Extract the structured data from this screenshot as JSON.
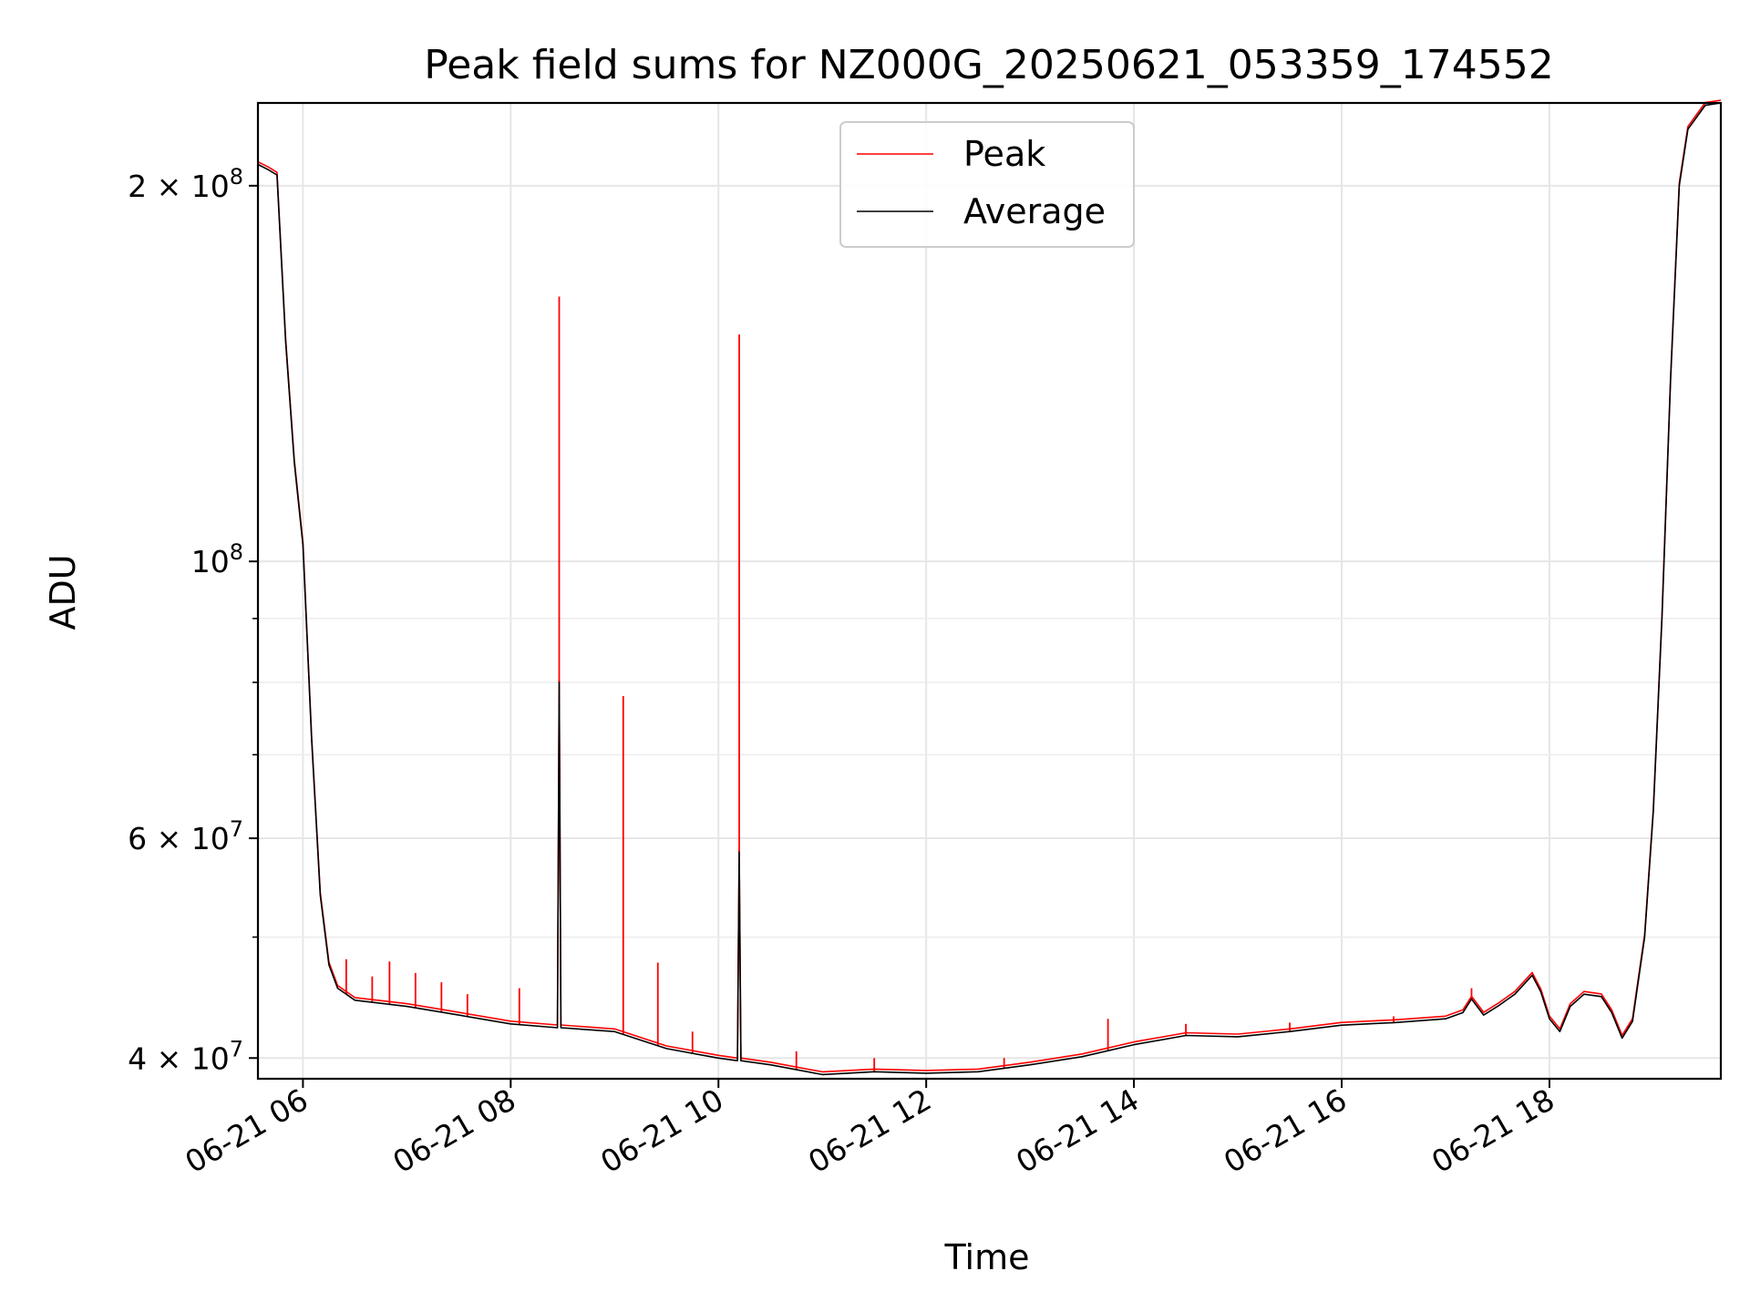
{
  "chart_data": {
    "type": "line",
    "title": "Peak field sums for NZ000G_20250621_053359_174552",
    "xlabel": "Time",
    "ylabel": "ADU",
    "y_scale": "log",
    "ylim": [
      38500000,
      233000000
    ],
    "xlim": [
      "2025-06-21 05:34",
      "2025-06-21 19:39"
    ],
    "x_ticks": [
      {
        "t": "2025-06-21 06:00",
        "label": "06-21 06"
      },
      {
        "t": "2025-06-21 08:00",
        "label": "06-21 08"
      },
      {
        "t": "2025-06-21 10:00",
        "label": "06-21 10"
      },
      {
        "t": "2025-06-21 12:00",
        "label": "06-21 12"
      },
      {
        "t": "2025-06-21 14:00",
        "label": "06-21 14"
      },
      {
        "t": "2025-06-21 16:00",
        "label": "06-21 16"
      },
      {
        "t": "2025-06-21 18:00",
        "label": "06-21 18"
      }
    ],
    "y_major_ticks": [
      {
        "v": 40000000,
        "mant": "4",
        "exp": "7"
      },
      {
        "v": 60000000,
        "mant": "6",
        "exp": "7"
      },
      {
        "v": 100000000,
        "mant": "",
        "exp": "8"
      },
      {
        "v": 200000000,
        "mant": "2",
        "exp": "8"
      }
    ],
    "y_minor_ticks": [
      50000000,
      70000000,
      80000000,
      90000000
    ],
    "grid": true,
    "legend_position": "upper-center",
    "series": [
      {
        "name": "Average",
        "color": "#000000",
        "points": [
          [
            "2025-06-21 05:34",
            208000000
          ],
          [
            "2025-06-21 05:40",
            206000000
          ],
          [
            "2025-06-21 05:45",
            204000000
          ],
          [
            "2025-06-21 05:50",
            150000000
          ],
          [
            "2025-06-21 05:55",
            120000000
          ],
          [
            "2025-06-21 06:00",
            103000000
          ],
          [
            "2025-06-21 06:05",
            72000000
          ],
          [
            "2025-06-21 06:10",
            54000000
          ],
          [
            "2025-06-21 06:15",
            47500000
          ],
          [
            "2025-06-21 06:20",
            45500000
          ],
          [
            "2025-06-21 06:30",
            44500000
          ],
          [
            "2025-06-21 07:00",
            44000000
          ],
          [
            "2025-06-21 07:30",
            43300000
          ],
          [
            "2025-06-21 08:00",
            42600000
          ],
          [
            "2025-06-21 08:27",
            42300000
          ],
          [
            "2025-06-21 08:28",
            80000000
          ],
          [
            "2025-06-21 08:29",
            42300000
          ],
          [
            "2025-06-21 09:00",
            42000000
          ],
          [
            "2025-06-21 09:30",
            40700000
          ],
          [
            "2025-06-21 10:00",
            40000000
          ],
          [
            "2025-06-21 10:11",
            39800000
          ],
          [
            "2025-06-21 10:12",
            58500000
          ],
          [
            "2025-06-21 10:13",
            39800000
          ],
          [
            "2025-06-21 10:30",
            39500000
          ],
          [
            "2025-06-21 11:00",
            38800000
          ],
          [
            "2025-06-21 11:30",
            39000000
          ],
          [
            "2025-06-21 12:00",
            38900000
          ],
          [
            "2025-06-21 12:30",
            39000000
          ],
          [
            "2025-06-21 13:00",
            39500000
          ],
          [
            "2025-06-21 13:30",
            40100000
          ],
          [
            "2025-06-21 14:00",
            41000000
          ],
          [
            "2025-06-21 14:30",
            41700000
          ],
          [
            "2025-06-21 15:00",
            41600000
          ],
          [
            "2025-06-21 15:30",
            42000000
          ],
          [
            "2025-06-21 16:00",
            42500000
          ],
          [
            "2025-06-21 16:30",
            42700000
          ],
          [
            "2025-06-21 17:00",
            43000000
          ],
          [
            "2025-06-21 17:10",
            43500000
          ],
          [
            "2025-06-21 17:15",
            44600000
          ],
          [
            "2025-06-21 17:22",
            43300000
          ],
          [
            "2025-06-21 17:30",
            44000000
          ],
          [
            "2025-06-21 17:40",
            45000000
          ],
          [
            "2025-06-21 17:50",
            46600000
          ],
          [
            "2025-06-21 17:55",
            45200000
          ],
          [
            "2025-06-21 18:00",
            43000000
          ],
          [
            "2025-06-21 18:06",
            42000000
          ],
          [
            "2025-06-21 18:12",
            44000000
          ],
          [
            "2025-06-21 18:20",
            45000000
          ],
          [
            "2025-06-21 18:30",
            44800000
          ],
          [
            "2025-06-21 18:36",
            43500000
          ],
          [
            "2025-06-21 18:42",
            41500000
          ],
          [
            "2025-06-21 18:48",
            42800000
          ],
          [
            "2025-06-21 18:55",
            50000000
          ],
          [
            "2025-06-21 19:00",
            63000000
          ],
          [
            "2025-06-21 19:05",
            90000000
          ],
          [
            "2025-06-21 19:10",
            140000000
          ],
          [
            "2025-06-21 19:15",
            200000000
          ],
          [
            "2025-06-21 19:20",
            222000000
          ],
          [
            "2025-06-21 19:30",
            232000000
          ],
          [
            "2025-06-21 19:39",
            233000000
          ]
        ]
      },
      {
        "name": "Peak",
        "color": "#ff0000",
        "spikes": [
          [
            "2025-06-21 06:25",
            48000000
          ],
          [
            "2025-06-21 06:40",
            46500000
          ],
          [
            "2025-06-21 06:50",
            47800000
          ],
          [
            "2025-06-21 07:05",
            46800000
          ],
          [
            "2025-06-21 07:20",
            46000000
          ],
          [
            "2025-06-21 07:35",
            45000000
          ],
          [
            "2025-06-21 08:05",
            45500000
          ],
          [
            "2025-06-21 08:28",
            163000000
          ],
          [
            "2025-06-21 09:05",
            78000000
          ],
          [
            "2025-06-21 09:25",
            47700000
          ],
          [
            "2025-06-21 09:45",
            42000000
          ],
          [
            "2025-06-21 10:12",
            152000000
          ],
          [
            "2025-06-21 10:45",
            40500000
          ],
          [
            "2025-06-21 11:30",
            40000000
          ],
          [
            "2025-06-21 12:45",
            40000000
          ],
          [
            "2025-06-21 13:45",
            43000000
          ],
          [
            "2025-06-21 14:30",
            42600000
          ],
          [
            "2025-06-21 15:30",
            42700000
          ],
          [
            "2025-06-21 16:30",
            43200000
          ],
          [
            "2025-06-21 17:15",
            45500000
          ]
        ]
      }
    ]
  }
}
